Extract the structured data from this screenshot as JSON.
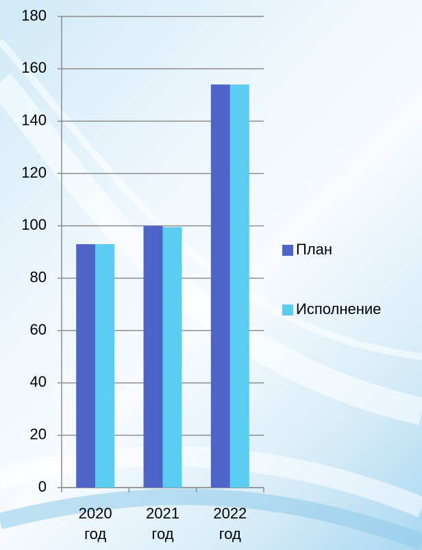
{
  "chart_data": {
    "type": "bar",
    "categories": [
      "2020 год",
      "2021 год",
      "2022 год"
    ],
    "series": [
      {
        "name": "План",
        "color": "#4f64c8",
        "values": [
          93,
          100,
          154
        ]
      },
      {
        "name": "Исполнение",
        "color": "#5bcdf0",
        "values": [
          93,
          99.5,
          154
        ]
      }
    ],
    "ylim": [
      0,
      180
    ],
    "yticks": [
      0,
      20,
      40,
      60,
      80,
      100,
      120,
      140,
      160,
      180
    ],
    "grid": true,
    "legend": "right"
  }
}
